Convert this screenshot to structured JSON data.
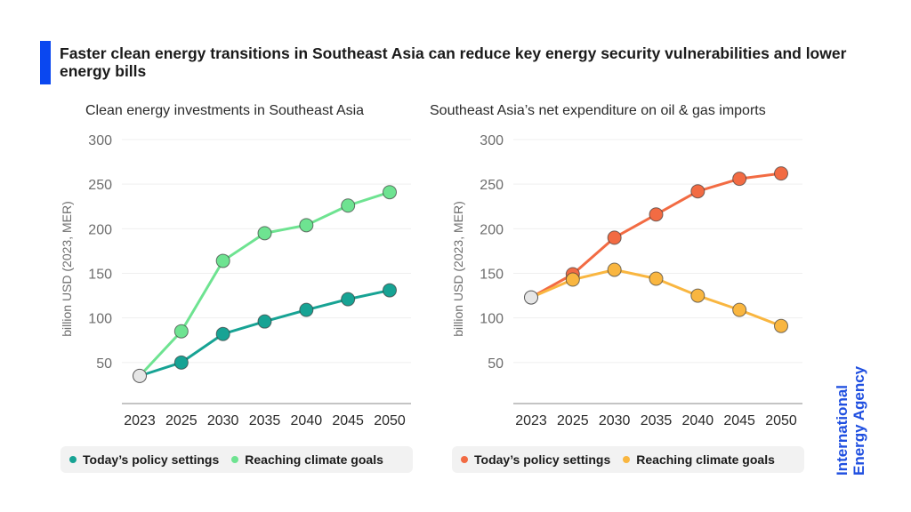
{
  "title": "Faster clean energy transitions in Southeast Asia can reduce key energy security vulnerabilities and lower energy bills",
  "logo": {
    "line1": "International",
    "line2": "Energy Agency",
    "color": "#1f4fe0"
  },
  "accent_color": "#0a47f0",
  "chart_data": [
    {
      "type": "line",
      "title": "Clean energy investments in Southeast Asia",
      "xlabel": "",
      "ylabel": "billion USD (2023, MER)",
      "categories": [
        "2023",
        "2025",
        "2030",
        "2035",
        "2040",
        "2045",
        "2050"
      ],
      "ylim": [
        0,
        300
      ],
      "yticks": [
        50,
        100,
        150,
        200,
        250,
        300
      ],
      "grid": true,
      "legend_position": "bottom",
      "base_point": {
        "x": "2023",
        "value": 35,
        "color": "#e6e6e6"
      },
      "series": [
        {
          "name": "Today’s policy settings",
          "color": "#17a394",
          "values": [
            35,
            50,
            82,
            96,
            109,
            121,
            131
          ]
        },
        {
          "name": "Reaching climate goals",
          "color": "#6ee391",
          "values": [
            35,
            85,
            164,
            195,
            204,
            226,
            241
          ]
        }
      ]
    },
    {
      "type": "line",
      "title": "Southeast Asia’s net expenditure on oil & gas imports",
      "xlabel": "",
      "ylabel": "billion USD (2023, MER)",
      "categories": [
        "2023",
        "2025",
        "2030",
        "2035",
        "2040",
        "2045",
        "2050"
      ],
      "ylim": [
        0,
        300
      ],
      "yticks": [
        50,
        100,
        150,
        200,
        250,
        300
      ],
      "grid": true,
      "legend_position": "bottom",
      "base_point": {
        "x": "2023",
        "value": 123,
        "color": "#e6e6e6"
      },
      "series": [
        {
          "name": "Today’s policy settings",
          "color": "#f26b43",
          "values": [
            123,
            149,
            190,
            216,
            242,
            256,
            262
          ]
        },
        {
          "name": "Reaching climate goals",
          "color": "#f9b640",
          "values": [
            123,
            143,
            154,
            144,
            125,
            109,
            91
          ]
        }
      ]
    }
  ]
}
